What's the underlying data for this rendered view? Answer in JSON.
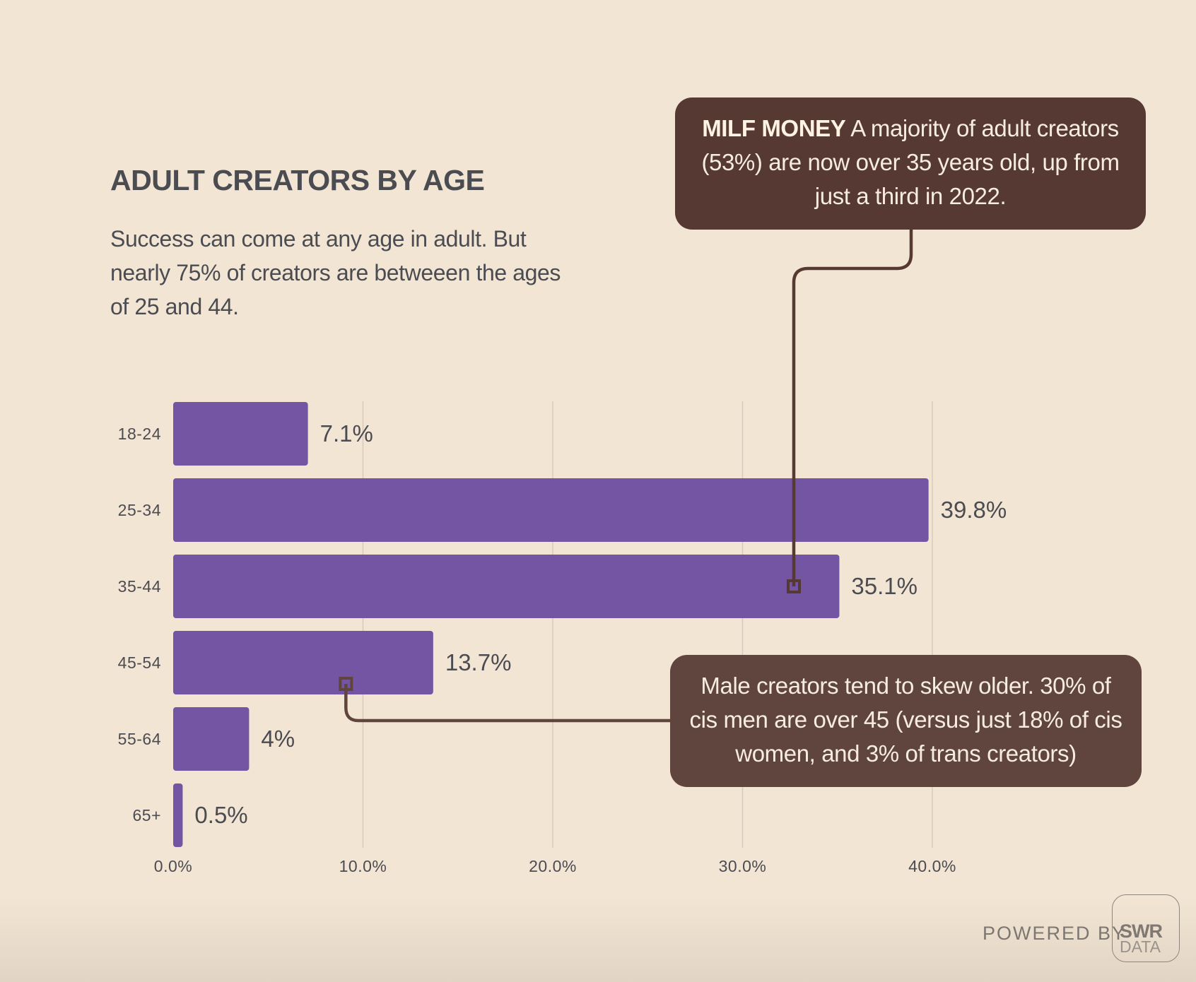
{
  "chart_data": {
    "type": "bar",
    "orientation": "horizontal",
    "title": "ADULT CREATORS BY AGE",
    "subtitle": "Success can come at any age in adult. But nearly 75% of creators are betweeen the ages of 25 and 44.",
    "categories": [
      "18-24",
      "25-34",
      "35-44",
      "45-54",
      "55-64",
      "65+"
    ],
    "values": [
      7.1,
      39.8,
      35.1,
      13.7,
      4,
      0.5
    ],
    "data_labels": [
      "7.1%",
      "39.8%",
      "35.1%",
      "13.7%",
      "4%",
      "0.5%"
    ],
    "x_ticks": [
      "0.0%",
      "10.0%",
      "20.0%",
      "30.0%",
      "40.0%"
    ],
    "x_tick_values": [
      0,
      10,
      20,
      30,
      40
    ],
    "xlim": [
      0,
      40
    ],
    "xlabel": "",
    "ylabel": "",
    "grid": "vertical",
    "bar_color": "#7355a3",
    "annotations": [
      {
        "id": "milf",
        "bold": "MILF MONEY",
        "text": " A majority of adult creators (53%) are now over 35 years old, up from just a third in 2022.",
        "points_to": "35-44",
        "anchor_value": 32.7
      },
      {
        "id": "male",
        "text": "Male creators tend to skew older. 30% of cis men are over 45 (versus just 18% of cis women, and 3% of trans creators)",
        "points_to": "45-54",
        "anchor_value": 9.1
      }
    ]
  },
  "footer": {
    "powered_by": "POWERED BY",
    "logo_line1": "SWR",
    "logo_line2": "DATA"
  },
  "colors": {
    "background": "#f2e5d3",
    "bar": "#7355a3",
    "callout_dark": "#553932",
    "callout_medium": "#5f453d",
    "text": "#4b4c52",
    "gridline": "#d9cbbb"
  }
}
